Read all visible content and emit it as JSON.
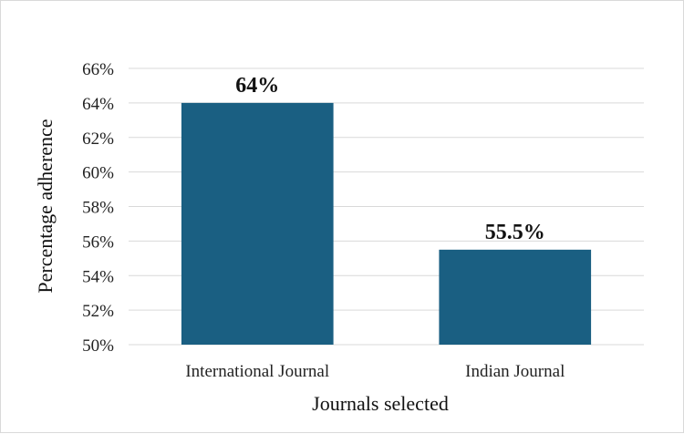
{
  "chart_data": {
    "type": "bar",
    "categories": [
      "International Journal",
      "Indian Journal"
    ],
    "values": [
      64,
      55.5
    ],
    "data_labels": [
      "64%",
      "55.5%"
    ],
    "title": "",
    "xlabel": "Journals selected",
    "ylabel": "Percentage adherence",
    "ylim": [
      50,
      66
    ],
    "yticks": [
      50,
      52,
      54,
      56,
      58,
      60,
      62,
      64,
      66
    ],
    "ytick_labels": [
      "50%",
      "52%",
      "54%",
      "56%",
      "58%",
      "60%",
      "62%",
      "64%",
      "66%"
    ],
    "grid": true,
    "legend": "none",
    "bar_color": "#1a5f82",
    "grid_color": "#d9d9d9"
  }
}
